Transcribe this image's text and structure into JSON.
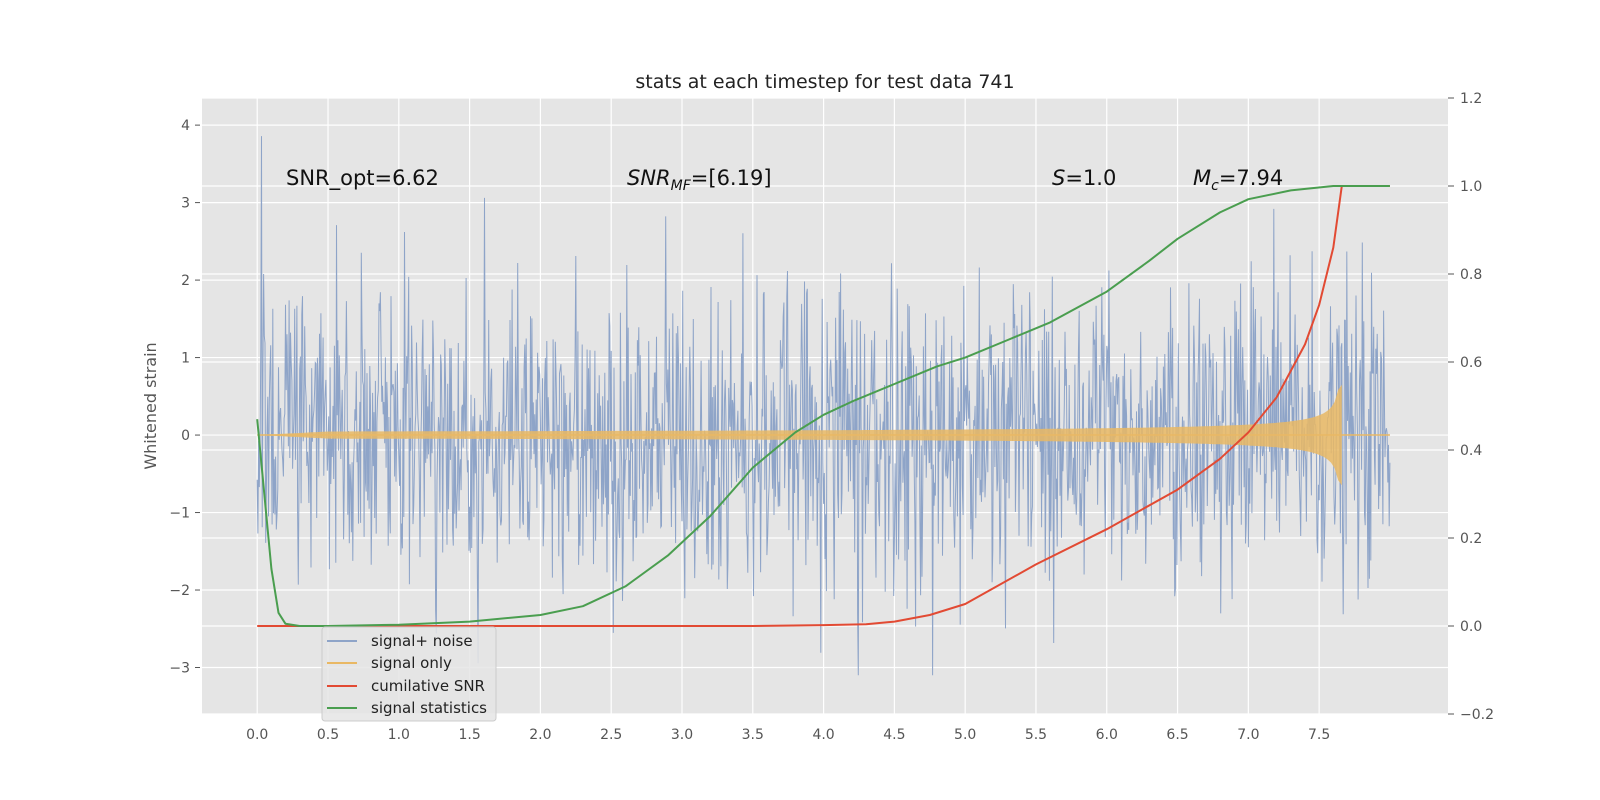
{
  "chart_data": {
    "type": "line",
    "title": "stats at each timestep for test data 741",
    "ylabel": "Whitened strain",
    "xlabel": "",
    "xlim": [
      -0.39,
      8.41
    ],
    "ylim": [
      -3.6,
      4.35
    ],
    "y2lim": [
      -0.2,
      1.2
    ],
    "xticks": [
      "0.0",
      "0.5",
      "1.0",
      "1.5",
      "2.0",
      "2.5",
      "3.0",
      "3.5",
      "4.0",
      "4.5",
      "5.0",
      "5.5",
      "6.0",
      "6.5",
      "7.0",
      "7.5"
    ],
    "yticks": [
      "4",
      "3",
      "2",
      "1",
      "0",
      "−1",
      "−2",
      "−3"
    ],
    "y2ticks": [
      "1.2",
      "1.0",
      "0.8",
      "0.6",
      "0.4",
      "0.2",
      "0.0",
      "−0.2"
    ],
    "grid": true,
    "legend_position": "lower-left",
    "annotations": {
      "snr_opt": "SNR_opt=6.62",
      "snr_mf_main": "SNR",
      "snr_mf_sub": "MF",
      "snr_mf_rest": "=[6.19]",
      "s_main": "S",
      "s_rest": "=1.0",
      "mc_main": "M",
      "mc_sub": "c",
      "mc_rest": "=7.94"
    },
    "series": [
      {
        "name": "signal+ noise",
        "color": "#8ea4c8",
        "axis": "left",
        "kind": "noise",
        "x_range": [
          0.0,
          8.0
        ],
        "amplitude_std": 0.95
      },
      {
        "name": "signal only",
        "color": "#e9b864",
        "axis": "left",
        "kind": "chirp",
        "x_range": [
          0.0,
          7.66
        ],
        "peak_amplitude": 0.65
      },
      {
        "name": "cumilative SNR",
        "color": "#e24a33",
        "axis": "right",
        "x": [
          0.0,
          1.0,
          2.0,
          3.0,
          3.5,
          4.0,
          4.3,
          4.5,
          4.75,
          5.0,
          5.5,
          6.0,
          6.5,
          6.8,
          7.0,
          7.2,
          7.4,
          7.5,
          7.6,
          7.66,
          8.0
        ],
        "values": [
          0.0,
          0.0,
          0.0,
          0.0,
          0.0,
          0.002,
          0.004,
          0.01,
          0.025,
          0.05,
          0.14,
          0.22,
          0.31,
          0.38,
          0.44,
          0.52,
          0.64,
          0.73,
          0.86,
          1.0,
          1.0
        ]
      },
      {
        "name": "signal statistics",
        "color": "#4a9e4f",
        "axis": "right",
        "x": [
          0.0,
          0.05,
          0.1,
          0.15,
          0.2,
          0.3,
          0.5,
          1.0,
          1.5,
          2.0,
          2.3,
          2.6,
          2.9,
          3.2,
          3.5,
          3.8,
          4.0,
          4.2,
          4.5,
          4.8,
          5.0,
          5.3,
          5.6,
          6.0,
          6.3,
          6.5,
          6.8,
          7.0,
          7.3,
          7.6,
          8.0
        ],
        "values": [
          0.47,
          0.3,
          0.13,
          0.03,
          0.005,
          0.0,
          0.0,
          0.003,
          0.01,
          0.025,
          0.045,
          0.09,
          0.16,
          0.25,
          0.36,
          0.44,
          0.48,
          0.51,
          0.55,
          0.59,
          0.61,
          0.65,
          0.69,
          0.76,
          0.83,
          0.88,
          0.94,
          0.97,
          0.99,
          1.0,
          1.0
        ]
      }
    ]
  }
}
